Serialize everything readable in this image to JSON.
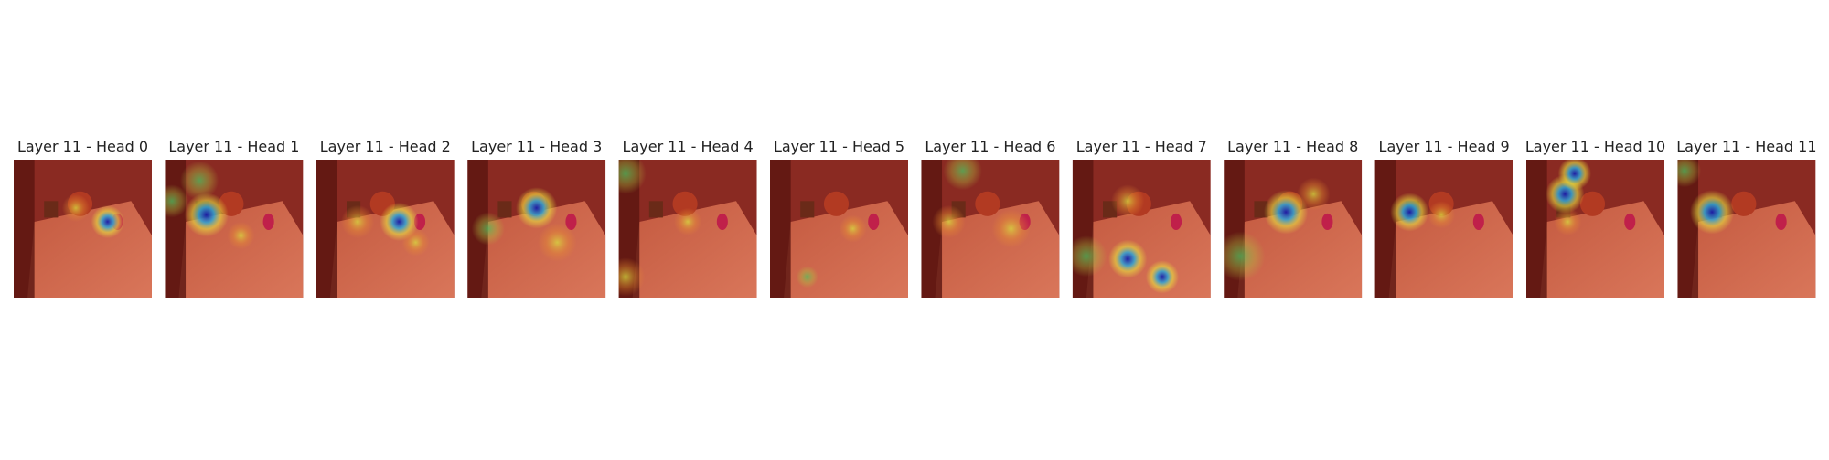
{
  "panels": [
    {
      "title": "Layer 11 - Head 0"
    },
    {
      "title": "Layer 11 - Head 1"
    },
    {
      "title": "Layer 11 - Head 2"
    },
    {
      "title": "Layer 11 - Head 3"
    },
    {
      "title": "Layer 11 - Head 4"
    },
    {
      "title": "Layer 11 - Head 5"
    },
    {
      "title": "Layer 11 - Head 6"
    },
    {
      "title": "Layer 11 - Head 7"
    },
    {
      "title": "Layer 11 - Head 8"
    },
    {
      "title": "Layer 11 - Head 9"
    },
    {
      "title": "Layer 11 - Head 10"
    },
    {
      "title": "Layer 11 - Head 11"
    }
  ]
}
